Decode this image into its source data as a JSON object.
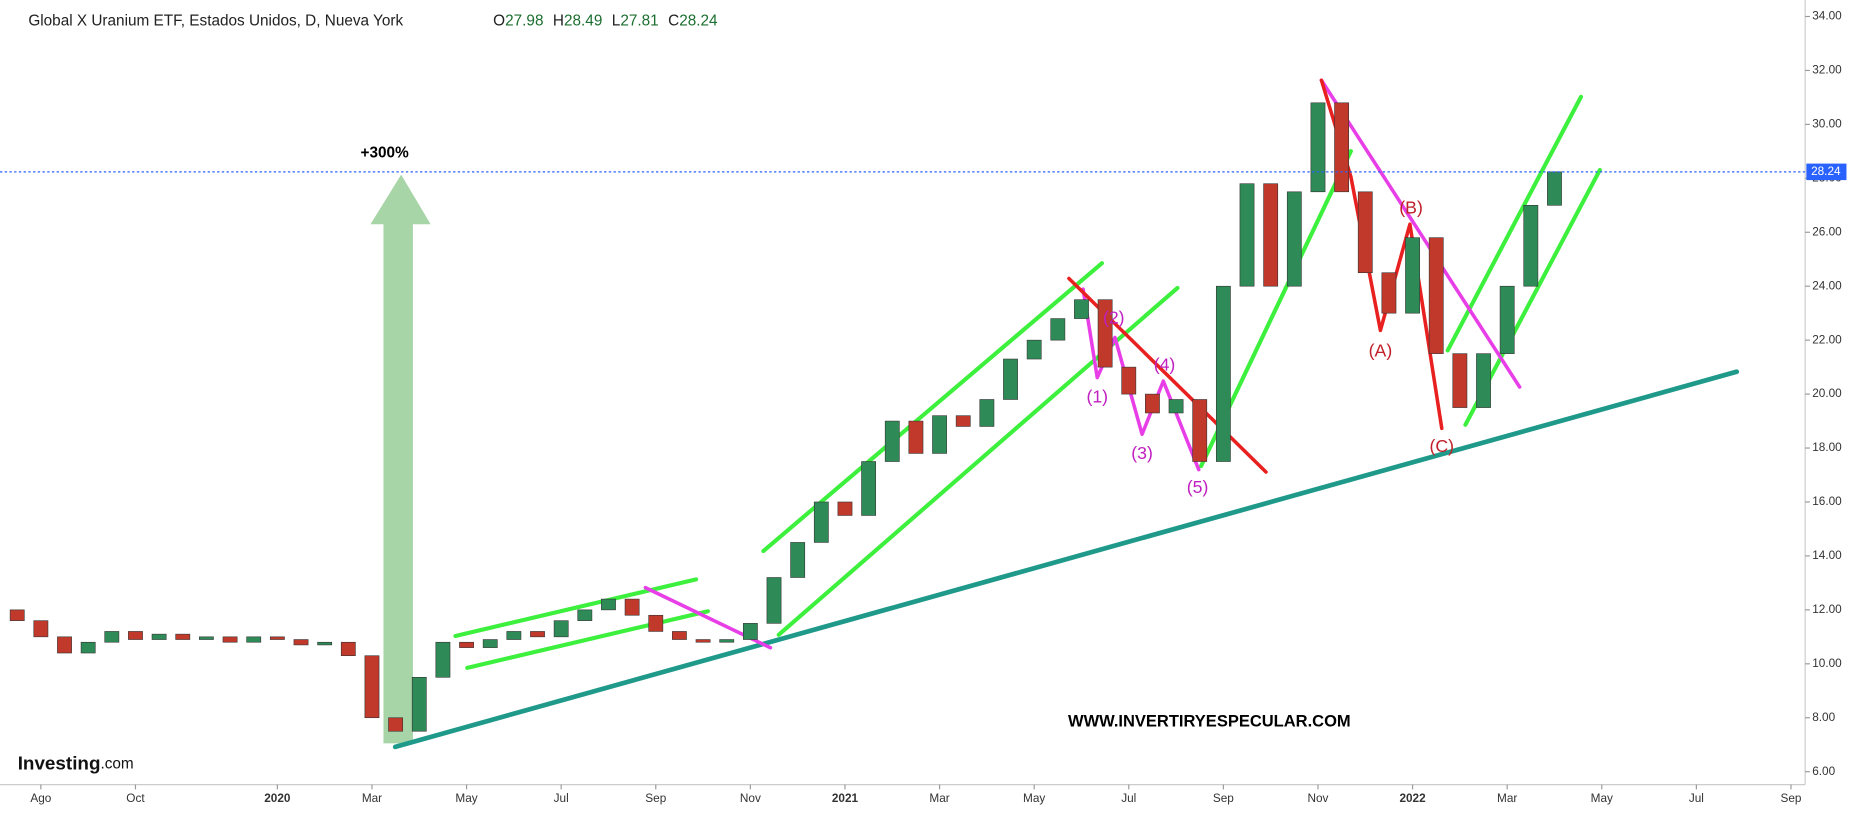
{
  "chart_data": {
    "type": "candlestick",
    "title": "Global X Uranium ETF, Estados Unidos, D, Nueva York",
    "ohlc": [
      {
        "label": "O",
        "value": 27.98
      },
      {
        "label": "H",
        "value": 28.49
      },
      {
        "label": "L",
        "value": 27.81
      },
      {
        "label": "C",
        "value": 28.24
      }
    ],
    "last_price": {
      "value": 28.24,
      "label": "28.24"
    },
    "annotations": [
      "+300%",
      "(1)",
      "(2)",
      "(3)",
      "(4)",
      "(5)",
      "(A)",
      "(B)",
      "(C)",
      "WWW.INVERTIRYESPECULAR.COM"
    ],
    "logo": [
      "Investing",
      ".com"
    ],
    "up_color": "#2e8b57",
    "down_color": "#c0392b",
    "x": [
      -0.5,
      0,
      0.5,
      1,
      1.5,
      2,
      2.5,
      3,
      3.5,
      4,
      4.5,
      5,
      5.5,
      6,
      6.5,
      7,
      7.5,
      8,
      8.5,
      9,
      9.5,
      10,
      10.5,
      11,
      11.5,
      12,
      12.5,
      13,
      13.5,
      14,
      14.5,
      15,
      15.5,
      16,
      16.5,
      17,
      17.5,
      18,
      18.5,
      19,
      19.5,
      20,
      20.5,
      21,
      21.5,
      22,
      22.5,
      23,
      23.5,
      24,
      24.5,
      25,
      25.5,
      26,
      26.5,
      27,
      27.5,
      28,
      28.5,
      29,
      29.5,
      30,
      30.5,
      31,
      31.5,
      32
    ],
    "open": [
      12.0,
      11.6,
      11.0,
      10.4,
      10.8,
      11.2,
      10.9,
      11.1,
      10.9,
      11.0,
      10.8,
      11.0,
      10.9,
      10.7,
      10.8,
      10.3,
      8.0,
      7.5,
      9.5,
      10.8,
      10.6,
      10.9,
      11.2,
      11.0,
      11.6,
      12.0,
      12.4,
      11.8,
      11.2,
      10.9,
      10.8,
      10.9,
      11.5,
      13.2,
      14.5,
      16.0,
      15.5,
      17.5,
      19.0,
      17.8,
      19.2,
      18.8,
      19.8,
      21.3,
      22.0,
      22.8,
      23.5,
      21.0,
      20.0,
      19.3,
      19.8,
      17.5,
      24.0,
      27.8,
      24.0,
      27.5,
      30.8,
      27.5,
      24.5,
      23.0,
      25.8,
      21.5,
      19.5,
      21.5,
      24.0,
      27.0
    ],
    "close": [
      11.6,
      11.0,
      10.4,
      10.8,
      11.2,
      10.9,
      11.1,
      10.9,
      11.0,
      10.8,
      11.0,
      10.9,
      10.7,
      10.8,
      10.3,
      8.0,
      7.5,
      9.5,
      10.8,
      10.6,
      10.9,
      11.2,
      11.0,
      11.6,
      12.0,
      12.4,
      11.8,
      11.2,
      10.9,
      10.8,
      10.9,
      11.5,
      13.2,
      14.5,
      16.0,
      15.5,
      17.5,
      19.0,
      17.8,
      19.2,
      18.8,
      19.8,
      21.3,
      22.0,
      22.8,
      23.5,
      21.0,
      20.0,
      19.3,
      19.8,
      17.5,
      24.0,
      27.8,
      24.0,
      27.5,
      30.8,
      27.5,
      24.5,
      23.0,
      25.8,
      21.5,
      19.5,
      21.5,
      24.0,
      27.0,
      28.24
    ],
    "xlim": [
      -0.864,
      37.3
    ],
    "xticks": [
      {
        "value": 0,
        "label": "Ago"
      },
      {
        "value": 2,
        "label": "Oct"
      },
      {
        "value": 5,
        "label": "2020"
      },
      {
        "value": 7,
        "label": "Mar"
      },
      {
        "value": 9,
        "label": "May"
      },
      {
        "value": 11,
        "label": "Jul"
      },
      {
        "value": 13,
        "label": "Sep"
      },
      {
        "value": 15,
        "label": "Nov"
      },
      {
        "value": 17,
        "label": "2021"
      },
      {
        "value": 19,
        "label": "Mar"
      },
      {
        "value": 21,
        "label": "May"
      },
      {
        "value": 23,
        "label": "Jul"
      },
      {
        "value": 25,
        "label": "Sep"
      },
      {
        "value": 27,
        "label": "Nov"
      },
      {
        "value": 29,
        "label": "2022"
      },
      {
        "value": 31,
        "label": "Mar"
      },
      {
        "value": 33,
        "label": "May"
      },
      {
        "value": 35,
        "label": "Jul"
      },
      {
        "value": 37,
        "label": "Sep"
      }
    ],
    "ylim": [
      5.52,
      34.61
    ],
    "yticks": [
      {
        "value": 6,
        "label": "6.00"
      },
      {
        "value": 8,
        "label": "8.00"
      },
      {
        "value": 10,
        "label": "10.00"
      },
      {
        "value": 12,
        "label": "12.00"
      },
      {
        "value": 14,
        "label": "14.00"
      },
      {
        "value": 16,
        "label": "16.00"
      },
      {
        "value": 18,
        "label": "18.00"
      },
      {
        "value": 20,
        "label": "20.00"
      },
      {
        "value": 22,
        "label": "22.00"
      },
      {
        "value": 24,
        "label": "24.00"
      },
      {
        "value": 26,
        "label": "26.00"
      },
      {
        "value": 28,
        "label": "28.00"
      },
      {
        "value": 30,
        "label": "30.00"
      },
      {
        "value": 32,
        "label": "32.00"
      },
      {
        "value": 34,
        "label": "34.00"
      }
    ]
  }
}
